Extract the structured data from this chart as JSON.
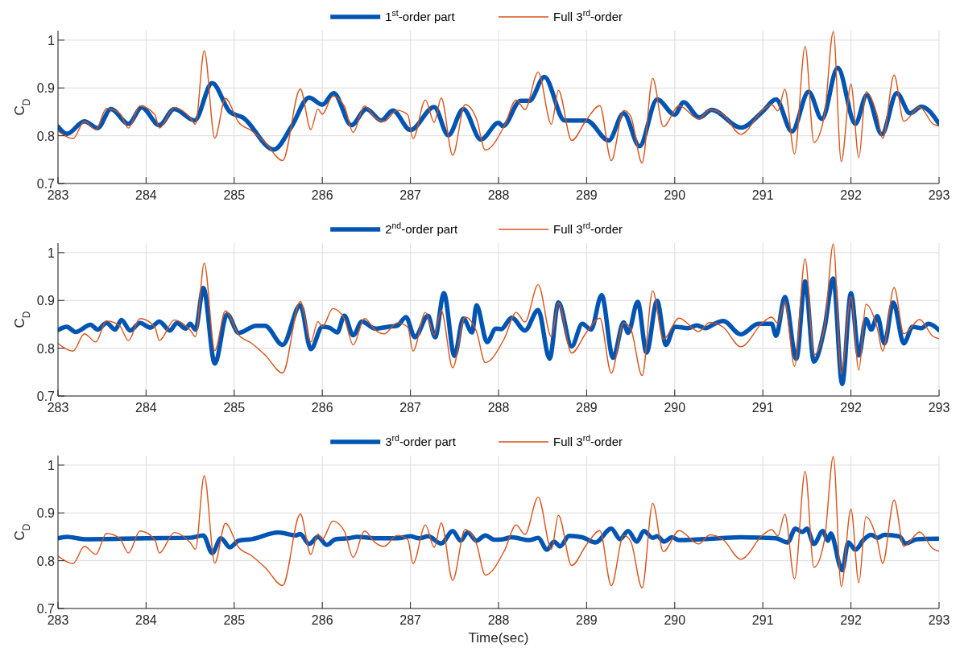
{
  "chart_data": [
    {
      "type": "line",
      "ylabel": "C$_{D}$",
      "xlim": [
        283,
        293
      ],
      "ylim": [
        0.7,
        1.02
      ],
      "xticks": [
        283,
        284,
        285,
        286,
        287,
        288,
        289,
        290,
        291,
        292,
        293
      ],
      "yticks": [
        0.7,
        0.8,
        0.9,
        1
      ],
      "grid": true,
      "legend": "top",
      "series": [
        {
          "name": "1$^{st}$-order part",
          "color": "#0055b3",
          "x": [
            283.0,
            283.1,
            283.3,
            283.45,
            283.6,
            283.8,
            283.95,
            284.15,
            284.32,
            284.55,
            284.75,
            284.95,
            285.1,
            285.45,
            285.65,
            285.85,
            286.0,
            286.13,
            286.33,
            286.5,
            286.67,
            286.8,
            287.0,
            287.27,
            287.43,
            287.6,
            287.8,
            288.0,
            288.05,
            288.25,
            288.35,
            288.52,
            288.75,
            289.0,
            289.25,
            289.42,
            289.6,
            289.8,
            290.0,
            290.1,
            290.28,
            290.42,
            290.75,
            291.0,
            291.15,
            291.33,
            291.52,
            291.67,
            291.85,
            292.05,
            292.18,
            292.35,
            292.52,
            292.67,
            292.8,
            293.0
          ],
          "values": [
            0.819,
            0.804,
            0.83,
            0.816,
            0.856,
            0.825,
            0.859,
            0.822,
            0.856,
            0.832,
            0.91,
            0.85,
            0.838,
            0.771,
            0.819,
            0.88,
            0.865,
            0.889,
            0.822,
            0.856,
            0.832,
            0.853,
            0.812,
            0.86,
            0.801,
            0.856,
            0.792,
            0.827,
            0.82,
            0.873,
            0.873,
            0.923,
            0.832,
            0.832,
            0.79,
            0.847,
            0.778,
            0.876,
            0.844,
            0.87,
            0.838,
            0.854,
            0.817,
            0.851,
            0.876,
            0.809,
            0.892,
            0.835,
            0.942,
            0.825,
            0.885,
            0.803,
            0.889,
            0.847,
            0.861,
            0.825
          ]
        },
        {
          "name": "Full 3$^{rd}$-order",
          "color": "#d95319",
          "x": [
            283.0,
            283.17,
            283.3,
            283.43,
            283.55,
            283.7,
            283.8,
            283.93,
            284.1,
            284.15,
            284.32,
            284.5,
            284.56,
            284.66,
            284.78,
            284.9,
            285.05,
            285.2,
            285.35,
            285.55,
            285.75,
            285.87,
            285.95,
            286.0,
            286.12,
            286.25,
            286.35,
            286.48,
            286.6,
            286.7,
            286.85,
            286.97,
            287.03,
            287.17,
            287.27,
            287.35,
            287.48,
            287.62,
            287.75,
            287.85,
            288.07,
            288.2,
            288.3,
            288.45,
            288.6,
            288.68,
            288.83,
            289.0,
            289.15,
            289.28,
            289.42,
            289.5,
            289.63,
            289.75,
            289.87,
            290.05,
            290.27,
            290.4,
            290.55,
            290.75,
            291.0,
            291.1,
            291.17,
            291.25,
            291.36,
            291.48,
            291.58,
            291.7,
            291.8,
            291.89,
            292.0,
            292.09,
            292.17,
            292.3,
            292.36,
            292.49,
            292.6,
            292.78,
            292.93,
            293.0
          ],
          "values": [
            0.81,
            0.794,
            0.83,
            0.813,
            0.857,
            0.847,
            0.816,
            0.862,
            0.844,
            0.816,
            0.859,
            0.838,
            0.824,
            0.978,
            0.795,
            0.878,
            0.828,
            0.81,
            0.786,
            0.748,
            0.898,
            0.813,
            0.856,
            0.845,
            0.883,
            0.862,
            0.807,
            0.862,
            0.838,
            0.83,
            0.853,
            0.844,
            0.794,
            0.875,
            0.828,
            0.879,
            0.759,
            0.865,
            0.835,
            0.77,
            0.822,
            0.875,
            0.855,
            0.933,
            0.824,
            0.895,
            0.79,
            0.834,
            0.863,
            0.748,
            0.853,
            0.841,
            0.743,
            0.92,
            0.819,
            0.863,
            0.835,
            0.854,
            0.844,
            0.803,
            0.854,
            0.865,
            0.852,
            0.897,
            0.762,
            0.987,
            0.786,
            0.844,
            1.018,
            0.746,
            0.908,
            0.754,
            0.892,
            0.841,
            0.794,
            0.927,
            0.83,
            0.86,
            0.825,
            0.82
          ]
        }
      ]
    },
    {
      "type": "line",
      "ylabel": "C$_{D}$",
      "xlim": [
        283,
        293
      ],
      "ylim": [
        0.7,
        1.02
      ],
      "xticks": [
        283,
        284,
        285,
        286,
        287,
        288,
        289,
        290,
        291,
        292,
        293
      ],
      "yticks": [
        0.7,
        0.8,
        0.9,
        1
      ],
      "grid": true,
      "legend": "top",
      "series": [
        {
          "name": "2$^{nd}$-order part",
          "color": "#0055b3",
          "x": [
            283.0,
            283.1,
            283.2,
            283.37,
            283.45,
            283.55,
            283.65,
            283.72,
            283.82,
            283.93,
            284.05,
            284.15,
            284.27,
            284.35,
            284.45,
            284.5,
            284.56,
            284.65,
            284.78,
            284.92,
            285.05,
            285.25,
            285.35,
            285.55,
            285.75,
            285.87,
            286.0,
            286.08,
            286.17,
            286.25,
            286.35,
            286.45,
            286.6,
            286.75,
            286.85,
            286.95,
            287.05,
            287.2,
            287.28,
            287.38,
            287.5,
            287.6,
            287.7,
            287.75,
            287.87,
            287.97,
            288.03,
            288.15,
            288.3,
            288.45,
            288.58,
            288.68,
            288.83,
            288.95,
            289.05,
            289.17,
            289.3,
            289.42,
            289.47,
            289.58,
            289.68,
            289.8,
            289.9,
            290.0,
            290.15,
            290.25,
            290.35,
            290.45,
            290.55,
            290.75,
            290.95,
            291.1,
            291.15,
            291.25,
            291.38,
            291.48,
            291.58,
            291.7,
            291.8,
            291.9,
            292.0,
            292.09,
            292.17,
            292.23,
            292.3,
            292.38,
            292.48,
            292.6,
            292.7,
            292.8,
            292.88,
            293.0
          ],
          "values": [
            0.838,
            0.845,
            0.834,
            0.849,
            0.839,
            0.853,
            0.839,
            0.859,
            0.837,
            0.853,
            0.843,
            0.856,
            0.837,
            0.853,
            0.841,
            0.851,
            0.839,
            0.926,
            0.768,
            0.871,
            0.832,
            0.847,
            0.847,
            0.807,
            0.89,
            0.798,
            0.845,
            0.843,
            0.833,
            0.868,
            0.827,
            0.856,
            0.841,
            0.845,
            0.847,
            0.865,
            0.823,
            0.868,
            0.823,
            0.915,
            0.784,
            0.862,
            0.833,
            0.89,
            0.813,
            0.841,
            0.84,
            0.864,
            0.837,
            0.88,
            0.778,
            0.896,
            0.804,
            0.851,
            0.839,
            0.911,
            0.78,
            0.854,
            0.832,
            0.897,
            0.791,
            0.899,
            0.807,
            0.845,
            0.842,
            0.848,
            0.842,
            0.851,
            0.857,
            0.829,
            0.851,
            0.851,
            0.826,
            0.907,
            0.778,
            0.94,
            0.772,
            0.842,
            0.946,
            0.725,
            0.915,
            0.785,
            0.861,
            0.839,
            0.867,
            0.81,
            0.896,
            0.81,
            0.845,
            0.842,
            0.851,
            0.838
          ]
        },
        {
          "name": "Full 3$^{rd}$-order",
          "color": "#d95319",
          "x": [
            283.0,
            283.17,
            283.3,
            283.43,
            283.55,
            283.7,
            283.8,
            283.93,
            284.1,
            284.15,
            284.32,
            284.5,
            284.56,
            284.66,
            284.78,
            284.9,
            285.05,
            285.2,
            285.35,
            285.55,
            285.75,
            285.87,
            285.95,
            286.0,
            286.12,
            286.25,
            286.35,
            286.48,
            286.6,
            286.7,
            286.85,
            286.97,
            287.03,
            287.17,
            287.27,
            287.35,
            287.48,
            287.62,
            287.75,
            287.85,
            288.07,
            288.2,
            288.3,
            288.45,
            288.6,
            288.68,
            288.83,
            289.0,
            289.15,
            289.28,
            289.42,
            289.5,
            289.63,
            289.75,
            289.87,
            290.05,
            290.27,
            290.4,
            290.55,
            290.75,
            291.0,
            291.1,
            291.17,
            291.25,
            291.36,
            291.48,
            291.58,
            291.7,
            291.8,
            291.89,
            292.0,
            292.09,
            292.17,
            292.3,
            292.36,
            292.49,
            292.6,
            292.78,
            292.93,
            293.0
          ],
          "values": [
            0.81,
            0.794,
            0.83,
            0.813,
            0.857,
            0.847,
            0.816,
            0.862,
            0.844,
            0.816,
            0.859,
            0.838,
            0.824,
            0.978,
            0.795,
            0.878,
            0.828,
            0.81,
            0.786,
            0.748,
            0.898,
            0.813,
            0.856,
            0.845,
            0.883,
            0.862,
            0.807,
            0.862,
            0.838,
            0.83,
            0.853,
            0.844,
            0.794,
            0.875,
            0.828,
            0.879,
            0.759,
            0.865,
            0.835,
            0.77,
            0.822,
            0.875,
            0.855,
            0.933,
            0.824,
            0.895,
            0.79,
            0.834,
            0.863,
            0.748,
            0.853,
            0.841,
            0.743,
            0.92,
            0.819,
            0.863,
            0.835,
            0.854,
            0.844,
            0.803,
            0.854,
            0.865,
            0.852,
            0.897,
            0.762,
            0.987,
            0.786,
            0.844,
            1.018,
            0.746,
            0.908,
            0.754,
            0.892,
            0.841,
            0.794,
            0.927,
            0.83,
            0.86,
            0.825,
            0.82
          ]
        }
      ]
    },
    {
      "type": "line",
      "ylabel": "C$_{D}$",
      "xlabel": "Time(sec)",
      "xlim": [
        283,
        293
      ],
      "ylim": [
        0.7,
        1.02
      ],
      "xticks": [
        283,
        284,
        285,
        286,
        287,
        288,
        289,
        290,
        291,
        292,
        293
      ],
      "yticks": [
        0.7,
        0.8,
        0.9,
        1
      ],
      "grid": true,
      "legend": "top",
      "series": [
        {
          "name": "3$^{rd}$-order part",
          "color": "#0055b3",
          "x": [
            283.0,
            283.1,
            283.3,
            284.0,
            284.5,
            284.65,
            284.75,
            284.85,
            284.95,
            285.05,
            285.2,
            285.5,
            285.7,
            285.75,
            285.85,
            285.95,
            286.05,
            286.15,
            286.3,
            286.4,
            286.6,
            286.85,
            287.0,
            287.1,
            287.2,
            287.35,
            287.48,
            287.57,
            287.65,
            287.75,
            287.85,
            287.95,
            288.05,
            288.15,
            288.35,
            288.45,
            288.55,
            288.63,
            288.7,
            288.8,
            288.95,
            289.1,
            289.28,
            289.38,
            289.47,
            289.57,
            289.65,
            289.75,
            289.8,
            289.88,
            289.97,
            290.05,
            290.5,
            290.75,
            291.0,
            291.15,
            291.28,
            291.37,
            291.45,
            291.5,
            291.58,
            291.68,
            291.74,
            291.77,
            291.9,
            291.97,
            292.05,
            292.15,
            292.23,
            292.3,
            292.38,
            292.55,
            292.62,
            292.75,
            293.0
          ],
          "values": [
            0.847,
            0.85,
            0.845,
            0.847,
            0.848,
            0.853,
            0.816,
            0.847,
            0.828,
            0.842,
            0.845,
            0.859,
            0.853,
            0.856,
            0.835,
            0.85,
            0.833,
            0.845,
            0.847,
            0.85,
            0.847,
            0.847,
            0.851,
            0.847,
            0.851,
            0.836,
            0.862,
            0.842,
            0.859,
            0.842,
            0.853,
            0.844,
            0.845,
            0.849,
            0.843,
            0.848,
            0.823,
            0.84,
            0.83,
            0.852,
            0.849,
            0.838,
            0.867,
            0.845,
            0.862,
            0.84,
            0.862,
            0.848,
            0.851,
            0.84,
            0.849,
            0.843,
            0.847,
            0.849,
            0.848,
            0.847,
            0.838,
            0.867,
            0.86,
            0.867,
            0.835,
            0.862,
            0.842,
            0.857,
            0.78,
            0.838,
            0.823,
            0.845,
            0.854,
            0.848,
            0.854,
            0.851,
            0.836,
            0.845,
            0.846
          ]
        },
        {
          "name": "Full 3$^{rd}$-order",
          "color": "#d95319",
          "x": [
            283.0,
            283.17,
            283.3,
            283.43,
            283.55,
            283.7,
            283.8,
            283.93,
            284.1,
            284.15,
            284.32,
            284.5,
            284.56,
            284.66,
            284.78,
            284.9,
            285.05,
            285.2,
            285.35,
            285.55,
            285.75,
            285.87,
            285.95,
            286.0,
            286.12,
            286.25,
            286.35,
            286.48,
            286.6,
            286.7,
            286.85,
            286.97,
            287.03,
            287.17,
            287.27,
            287.35,
            287.48,
            287.62,
            287.75,
            287.85,
            288.07,
            288.2,
            288.3,
            288.45,
            288.6,
            288.68,
            288.83,
            289.0,
            289.15,
            289.28,
            289.42,
            289.5,
            289.63,
            289.75,
            289.87,
            290.05,
            290.27,
            290.4,
            290.55,
            290.75,
            291.0,
            291.1,
            291.17,
            291.25,
            291.36,
            291.48,
            291.58,
            291.7,
            291.8,
            291.89,
            292.0,
            292.09,
            292.17,
            292.3,
            292.36,
            292.49,
            292.6,
            292.78,
            292.93,
            293.0
          ],
          "values": [
            0.81,
            0.794,
            0.83,
            0.813,
            0.857,
            0.847,
            0.816,
            0.862,
            0.844,
            0.816,
            0.859,
            0.838,
            0.824,
            0.978,
            0.795,
            0.878,
            0.828,
            0.81,
            0.786,
            0.748,
            0.898,
            0.813,
            0.856,
            0.845,
            0.883,
            0.862,
            0.807,
            0.862,
            0.838,
            0.83,
            0.853,
            0.844,
            0.794,
            0.875,
            0.828,
            0.879,
            0.759,
            0.865,
            0.835,
            0.77,
            0.822,
            0.875,
            0.855,
            0.933,
            0.824,
            0.895,
            0.79,
            0.834,
            0.863,
            0.748,
            0.853,
            0.841,
            0.743,
            0.92,
            0.819,
            0.863,
            0.835,
            0.854,
            0.844,
            0.803,
            0.854,
            0.865,
            0.852,
            0.897,
            0.762,
            0.987,
            0.786,
            0.844,
            1.018,
            0.746,
            0.908,
            0.754,
            0.892,
            0.841,
            0.794,
            0.927,
            0.83,
            0.86,
            0.825,
            0.82
          ]
        }
      ]
    }
  ]
}
